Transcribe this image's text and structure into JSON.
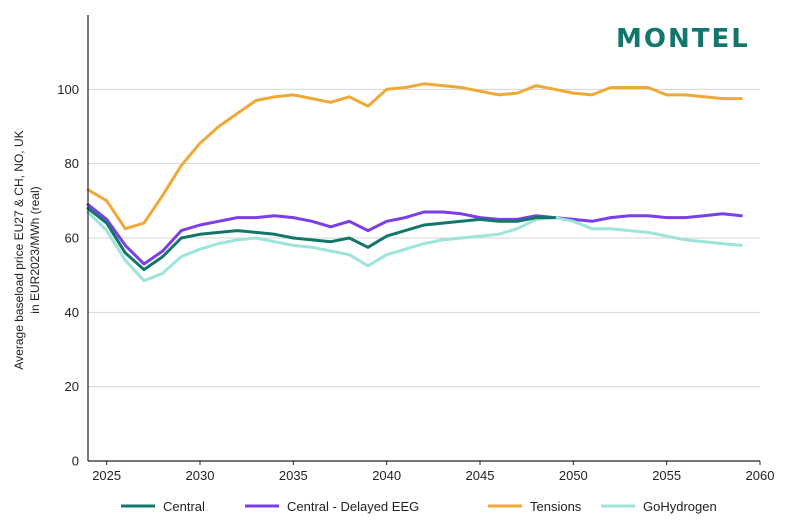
{
  "logo": {
    "text": "MONTEL",
    "color": "#12776a"
  },
  "chart_data": {
    "type": "line",
    "title": "",
    "xlabel": "",
    "ylabel_line1": "Average baseload price EU27 & CH, NO, UK",
    "ylabel_line2": "in EUR2023/MWh (real)",
    "ylim": [
      0,
      120
    ],
    "xlim": [
      2024,
      2060
    ],
    "yticks": [
      0,
      20,
      40,
      60,
      80,
      100
    ],
    "xticks": [
      2025,
      2030,
      2035,
      2040,
      2045,
      2050,
      2055,
      2060
    ],
    "grid": "horizontal",
    "legend_position": "bottom",
    "x": [
      2024,
      2025,
      2026,
      2027,
      2028,
      2029,
      2030,
      2031,
      2032,
      2033,
      2034,
      2035,
      2036,
      2037,
      2038,
      2039,
      2040,
      2041,
      2042,
      2043,
      2044,
      2045,
      2046,
      2047,
      2048,
      2049,
      2050,
      2051,
      2052,
      2053,
      2054,
      2055,
      2056,
      2057,
      2058,
      2059
    ],
    "series": [
      {
        "name": "Central",
        "color": "#12776a",
        "values": [
          68,
          64,
          56,
          51.5,
          55,
          60,
          61,
          61.5,
          62,
          61.5,
          61,
          60,
          59.5,
          59,
          60,
          57.5,
          60.5,
          62,
          63.5,
          64,
          64.5,
          65,
          64.5,
          64.5,
          65.5,
          65.5,
          null,
          null,
          null,
          null,
          null,
          null,
          null,
          null,
          null,
          null
        ]
      },
      {
        "name": "Central - Delayed EEG",
        "color": "#7a3fea",
        "values": [
          69,
          65,
          58,
          53,
          56.5,
          62,
          63.5,
          64.5,
          65.5,
          65.5,
          66,
          65.5,
          64.5,
          63,
          64.5,
          62,
          64.5,
          65.5,
          67,
          67,
          66.5,
          65.5,
          65,
          65,
          66,
          65.5,
          65,
          64.5,
          65.5,
          66,
          66,
          65.5,
          65.5,
          66,
          66.5,
          66
        ]
      },
      {
        "name": "Tensions",
        "color": "#f0a936",
        "values": [
          73,
          70,
          62.5,
          64,
          71.5,
          79.5,
          85.5,
          90,
          93.5,
          97,
          98,
          98.5,
          97.5,
          96.5,
          98,
          95.5,
          100,
          100.5,
          101.5,
          101,
          100.5,
          99.5,
          98.5,
          99,
          101,
          100,
          99,
          98.5,
          100.5,
          100.5,
          100.5,
          98.5,
          98.5,
          98,
          97.5,
          97.5
        ]
      },
      {
        "name": "GoHydrogen",
        "color": "#9ce4dc",
        "values": [
          67,
          62,
          54,
          48.5,
          50.5,
          55,
          57,
          58.5,
          59.5,
          60,
          59,
          58,
          57.5,
          56.5,
          55.5,
          52.5,
          55.5,
          57,
          58.5,
          59.5,
          60,
          60.5,
          61,
          62.5,
          65,
          65.5,
          64.5,
          62.5,
          62.5,
          62,
          61.5,
          60.5,
          59.5,
          59,
          58.5,
          58
        ]
      }
    ]
  }
}
